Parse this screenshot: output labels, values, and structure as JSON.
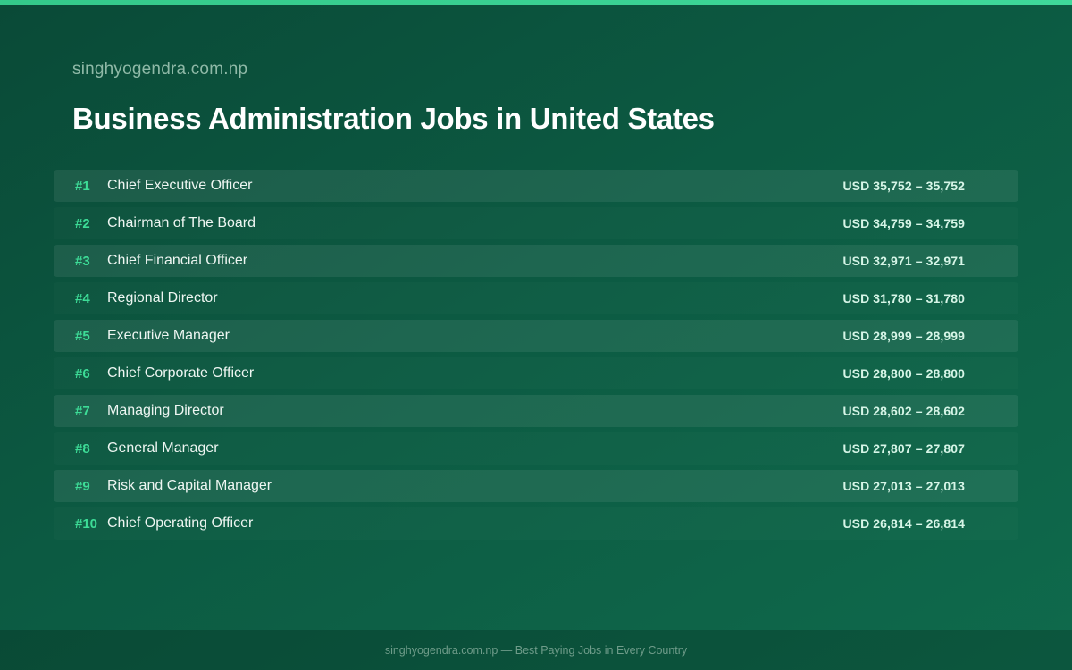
{
  "header": {
    "site_name": "singhyogendra.com.np",
    "title": "Business Administration Jobs in United States"
  },
  "jobs": [
    {
      "rank": "#1",
      "title": "Chief Executive Officer",
      "salary": "USD 35,752 – 35,752"
    },
    {
      "rank": "#2",
      "title": "Chairman of The Board",
      "salary": "USD 34,759 – 34,759"
    },
    {
      "rank": "#3",
      "title": "Chief Financial Officer",
      "salary": "USD 32,971 – 32,971"
    },
    {
      "rank": "#4",
      "title": "Regional Director",
      "salary": "USD 31,780 – 31,780"
    },
    {
      "rank": "#5",
      "title": "Executive Manager",
      "salary": "USD 28,999 – 28,999"
    },
    {
      "rank": "#6",
      "title": "Chief Corporate Officer",
      "salary": "USD 28,800 – 28,800"
    },
    {
      "rank": "#7",
      "title": "Managing Director",
      "salary": "USD 28,602 – 28,602"
    },
    {
      "rank": "#8",
      "title": "General Manager",
      "salary": "USD 27,807 – 27,807"
    },
    {
      "rank": "#9",
      "title": "Risk and Capital Manager",
      "salary": "USD 27,013 – 27,013"
    },
    {
      "rank": "#10",
      "title": "Chief Operating Officer",
      "salary": "USD 26,814 – 26,814"
    }
  ],
  "footer": {
    "text": "singhyogendra.com.np — Best Paying Jobs in Every Country"
  },
  "colors": {
    "background": "#0c5a42",
    "accent": "#3ddc97",
    "top_bar": "#34c98a"
  }
}
